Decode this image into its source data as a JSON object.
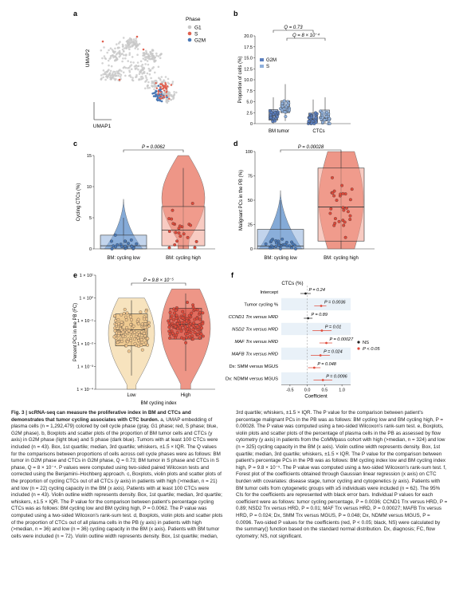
{
  "panels": {
    "a": {
      "label": "a",
      "xlabel": "UMAP1",
      "ylabel": "UMAP2",
      "legend_title": "Phase",
      "legend": [
        {
          "name": "G1",
          "color": "#c8c8c8"
        },
        {
          "name": "S",
          "color": "#e0604f"
        },
        {
          "name": "G2M",
          "color": "#4a78b5"
        }
      ]
    },
    "b": {
      "label": "b",
      "ylabel": "Proportion of cells (%)",
      "yticks": [
        "0",
        "2.5",
        "5.0",
        "7.5",
        "10.0",
        "12.5",
        "15.0",
        "17.5",
        "20.0"
      ],
      "xcats": [
        "BM tumor",
        "CTCs"
      ],
      "legend": [
        {
          "name": "G2M",
          "color": "#5b7fbf"
        },
        {
          "name": "S",
          "color": "#8fb0dc"
        }
      ],
      "q1": "Q = 0.73",
      "q2": "Q = 8 × 10⁻⁴"
    },
    "c": {
      "label": "c",
      "ylabel": "Cycling CTCs (%)",
      "yticks": [
        "0",
        "5",
        "10",
        "15"
      ],
      "xcats": [
        "BM: cycling low",
        "BM: cycling high"
      ],
      "p": "P = 0.0062"
    },
    "d": {
      "label": "d",
      "ylabel": "Malignant PCs in the PB (%)",
      "yticks": [
        "0",
        "25",
        "50",
        "75",
        "100"
      ],
      "xcats": [
        "BM: cycling low",
        "BM: cycling high"
      ],
      "p": "P = 0.00028"
    },
    "e": {
      "label": "e",
      "ylabel": "Percent PCs in the PB (FC)",
      "yticks": [
        "1 × 10⁻⁴",
        "1 × 10⁻³",
        "1 × 10⁻²",
        "1 × 10⁻¹",
        "1 × 10⁰",
        "1 × 10¹"
      ],
      "xcats": [
        "Low",
        "High"
      ],
      "xlabel": "BM cycling index",
      "p": "P = 9.8 × 10⁻⁵"
    },
    "f": {
      "label": "f",
      "header": "CTCs (%)",
      "xlabel": "Coefficient",
      "xticks": [
        "-0.5",
        "0.0",
        "0.5",
        "1.0"
      ],
      "legend": [
        {
          "name": "NS",
          "color": "#222222"
        },
        {
          "name": "P < 0.05",
          "color": "#e04a3a"
        }
      ]
    }
  },
  "chart_data": {
    "type": "forest",
    "rows": [
      {
        "label": "Intercept",
        "p": "P = 0.24",
        "coef": -0.05,
        "lo": -0.2,
        "hi": 0.1,
        "sig": false
      },
      {
        "label": "Tumor cycling %",
        "p": "P = 0.0036",
        "coef": 0.4,
        "lo": 0.2,
        "hi": 0.55,
        "sig": true
      },
      {
        "label": "CCND1 Trx versus HRD",
        "p": "P = 0.89",
        "coef": 0.02,
        "lo": -0.1,
        "hi": 0.15,
        "sig": false
      },
      {
        "label": "NSD2 Trx versus HRD",
        "p": "P = 0.01",
        "coef": 0.42,
        "lo": 0.15,
        "hi": 0.7,
        "sig": true
      },
      {
        "label": "MAF Trx versus HRD",
        "p": "P = 0.00027",
        "coef": 0.55,
        "lo": 0.35,
        "hi": 0.72,
        "sig": true
      },
      {
        "label": "MAFB Trx versus HRD",
        "p": "P = 0.024",
        "coef": 0.38,
        "lo": 0.1,
        "hi": 0.65,
        "sig": true
      },
      {
        "label": "Dx: SMM versus MGUS",
        "p": "P = 0.048",
        "coef": 0.2,
        "lo": 0.02,
        "hi": 0.38,
        "sig": true
      },
      {
        "label": "Dx: NDMM versus MGUS",
        "p": "P = 0.0096",
        "coef": 0.45,
        "lo": 0.18,
        "hi": 0.72,
        "sig": true
      }
    ],
    "xlim": [
      -0.75,
      1.25
    ]
  },
  "caption": {
    "title": "Fig. 3 | scRNA-seq can measure the proliferative index in BM and CTCs and demonstrates that tumor cycling associates with CTC burden.",
    "body": " a, UMAP embedding of plasma cells (n = 1,292,479) colored by cell cycle phase (gray, G1 phase; red, S phase; blue, G2M phase). b, Boxplots and scatter plots of the proportion of BM tumor cells and CTCs (y axis) in G2M phase (light blue) and S phase (dark blue). Tumors with at least 100 CTCs were included (n = 43). Box, 1st quartile; median, 3rd quartile; whiskers, ±1.5 × IQR. The Q values for the comparisons between proportions of cells across cell cycle phases were as follows: BM tumor in G2M phase and CTCs in G2M phase, Q = 0.73; BM tumor in S phase and CTCs in S phase, Q = 8 × 10⁻⁴. P values were computed using two-sided paired Wilcoxon tests and corrected using the Benjamini–Hochberg approach. c, Boxplots, violin plots and scatter plots of the proportion of cycling CTCs out of all CTCs (y axis) in patients with high (>median, n = 21) and low (n = 22) cycling capacity in the BM (x axis). Patients with at least 100 CTCs were included (n = 43). Violin outline width represents density. Box, 1st quartile; median, 3rd quartile; whiskers, ±1.5 × IQR. The P value for the comparison between patient's percentage cycling CTCs was as follows: BM cycling low and BM cycling high, P = 0.0062. The P value was computed using a two-sided Wilcoxon's rank-sum test. d, Boxplots, violin plots and scatter plots of the proportion of CTCs out of all plasma cells in the PB (y axis) in patients with high (>median, n = 36) and low (n = 36) cycling capacity in the BM (x axis). Patients with BM tumor cells were included (n = 72). Violin outline width represents density. Box, 1st quartile; median, 3rd quartile; whiskers, ±1.5 × IQR. The P value for the comparison between patient's percentage malignant PCs in the PB was as follows: BM cycling low and BM cycling high, P = 0.00028. The P value was computed using a two-sided Wilcoxon's rank-sum test. e, Boxplots, violin plots and scatter plots of the percentage of plasma cells in the PB as assessed by flow cytometry (y axis) in patients from the CoMMpass cohort with high (>median, n = 324) and low (n = 325) cycling capacity in the BM (x axis). Violin outline width represents density. Box, 1st quartile; median, 3rd quartile; whiskers, ±1.5 × IQR. The P value for the comparison between patient's percentage PCs in the PB was as follows: BM cycling index low and BM cycling index high, P = 9.8 × 10⁻⁵. The P value was computed using a two-sided Wilcoxon's rank-sum test. f, Forest plot of the coefficients obtained through Gaussian linear regression (x axis) on CTC burden with covariates: disease stage, tumor cycling and cytogenetics (y axis). Patients with BM tumor cells from cytogenetic groups with ≥5 individuals were included (n = 62). The 95% CIs for the coefficients are represented with black error bars. Individual P values for each coefficient were as follows: tumor cycling percentage, P = 0.0036; CCND1 Trx versus HRD, P = 0.89; NSD2 Trx versus HRD, P = 0.01; MAF Trx versus HRD, P = 0.00027; MAFB Trx versus HRD, P = 0.024; Dx, SMM Trx versus MGUS, P = 0.048; Dx, NDMM versus MGUS, P = 0.0096. Two-sided P values for the coefficients (red, P < 0.05; black, NS) were calculated by the summary() function based on the standard normal distribution. Dx, diagnosis; FC, flow cytometry; NS, not significant."
  }
}
